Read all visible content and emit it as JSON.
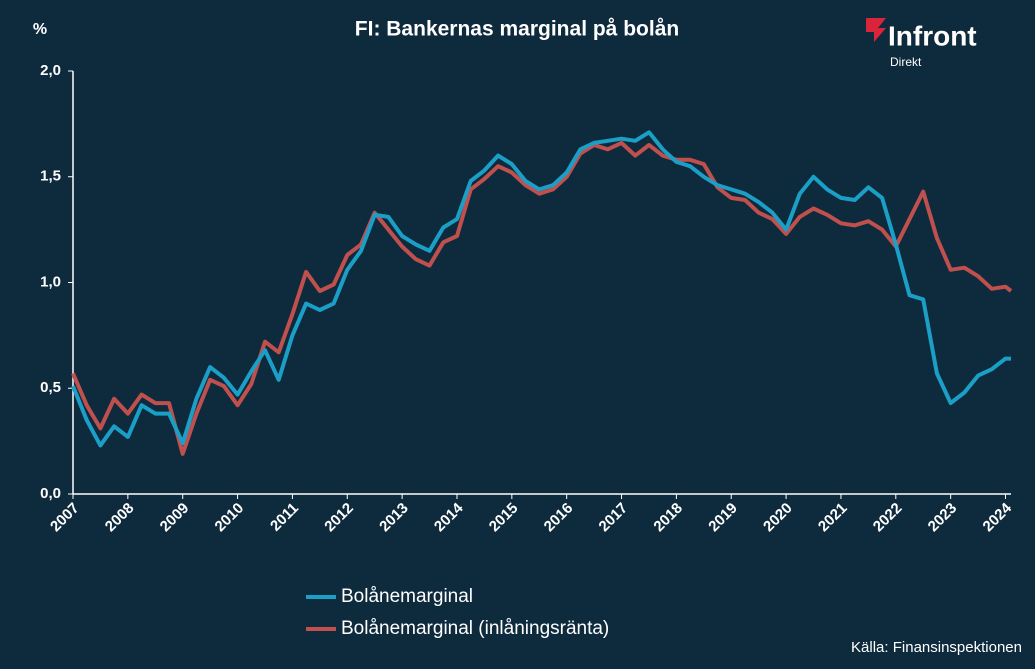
{
  "chart_data": {
    "type": "line",
    "title": "FI: Bankernas marginal på bolån",
    "ylabel": "%",
    "logo": "Infront",
    "logo_sub": "Direkt",
    "source": "Källa:  Finansinspektionen",
    "x": [
      2007,
      2007.25,
      2007.5,
      2007.75,
      2008,
      2008.25,
      2008.5,
      2008.75,
      2009,
      2009.25,
      2009.5,
      2009.75,
      2010,
      2010.25,
      2010.5,
      2010.75,
      2011,
      2011.25,
      2011.5,
      2011.75,
      2012,
      2012.25,
      2012.5,
      2012.75,
      2013,
      2013.25,
      2013.5,
      2013.75,
      2014,
      2014.25,
      2014.5,
      2014.75,
      2015,
      2015.25,
      2015.5,
      2015.75,
      2016,
      2016.25,
      2016.5,
      2016.75,
      2017,
      2017.25,
      2017.5,
      2017.75,
      2018,
      2018.25,
      2018.5,
      2018.75,
      2019,
      2019.25,
      2019.5,
      2019.75,
      2020,
      2020.25,
      2020.5,
      2020.75,
      2021,
      2021.25,
      2021.5,
      2021.75,
      2022,
      2022.25,
      2022.5,
      2022.75,
      2023,
      2023.25,
      2023.5,
      2023.75,
      2024,
      2024.1
    ],
    "series": [
      {
        "name": "Bolånemarginal",
        "color": "#1b9fc6",
        "values": [
          0.51,
          0.35,
          0.23,
          0.32,
          0.27,
          0.42,
          0.38,
          0.38,
          0.24,
          0.45,
          0.6,
          0.55,
          0.47,
          0.58,
          0.68,
          0.54,
          0.75,
          0.9,
          0.87,
          0.9,
          1.06,
          1.15,
          1.32,
          1.31,
          1.22,
          1.18,
          1.15,
          1.26,
          1.3,
          1.48,
          1.53,
          1.6,
          1.56,
          1.48,
          1.44,
          1.46,
          1.52,
          1.63,
          1.66,
          1.67,
          1.68,
          1.67,
          1.71,
          1.63,
          1.57,
          1.55,
          1.5,
          1.46,
          1.44,
          1.42,
          1.38,
          1.33,
          1.25,
          1.42,
          1.5,
          1.44,
          1.4,
          1.39,
          1.45,
          1.4,
          1.18,
          0.94,
          0.92,
          0.57,
          0.43,
          0.48,
          0.56,
          0.59,
          0.64,
          0.64
        ]
      },
      {
        "name": "Bolånemarginal (inlåningsränta)",
        "color": "#c0504d",
        "values": [
          0.57,
          0.42,
          0.31,
          0.45,
          0.38,
          0.47,
          0.43,
          0.43,
          0.19,
          0.38,
          0.54,
          0.51,
          0.42,
          0.52,
          0.72,
          0.67,
          0.85,
          1.05,
          0.96,
          0.99,
          1.13,
          1.18,
          1.33,
          1.25,
          1.17,
          1.11,
          1.08,
          1.19,
          1.22,
          1.44,
          1.49,
          1.55,
          1.52,
          1.46,
          1.42,
          1.44,
          1.5,
          1.61,
          1.65,
          1.63,
          1.66,
          1.6,
          1.65,
          1.6,
          1.58,
          1.58,
          1.56,
          1.45,
          1.4,
          1.39,
          1.33,
          1.3,
          1.23,
          1.31,
          1.35,
          1.32,
          1.28,
          1.27,
          1.29,
          1.25,
          1.17,
          1.3,
          1.43,
          1.21,
          1.06,
          1.07,
          1.03,
          0.97,
          0.98,
          0.96
        ]
      }
    ],
    "xlim": [
      2007,
      2024.1
    ],
    "xticks": [
      2007,
      2008,
      2009,
      2010,
      2011,
      2012,
      2013,
      2014,
      2015,
      2016,
      2017,
      2018,
      2019,
      2020,
      2021,
      2022,
      2023,
      2024
    ],
    "ylim": [
      0,
      2
    ],
    "yticks": [
      {
        "value": 0,
        "label": "0,0"
      },
      {
        "value": 0.5,
        "label": "0,5"
      },
      {
        "value": 1,
        "label": "1,0"
      },
      {
        "value": 1.5,
        "label": "1,5"
      },
      {
        "value": 2,
        "label": "2,0"
      }
    ]
  }
}
